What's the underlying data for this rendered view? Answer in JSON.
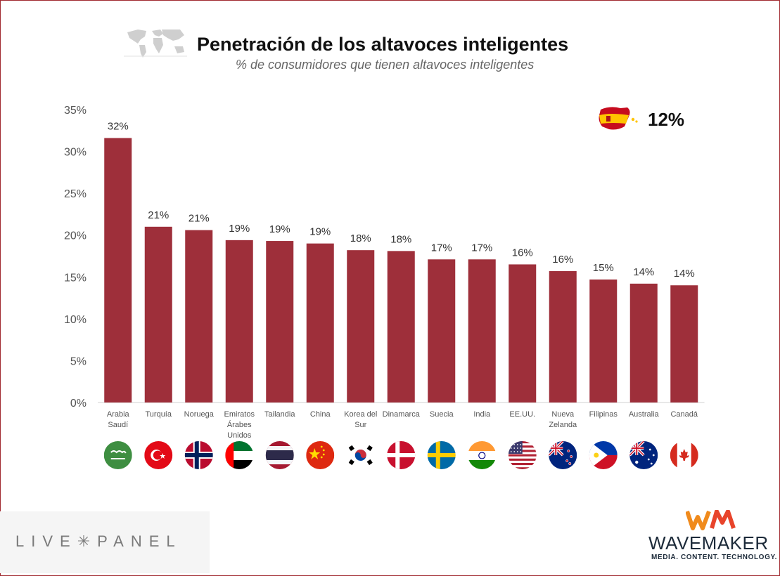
{
  "header": {
    "title": "Penetración de los altavoces inteligentes",
    "subtitle": "% de consumidores que tienen altavoces inteligentes"
  },
  "spain_callout": {
    "value": "12%",
    "flag": "spain-flag-icon"
  },
  "colors": {
    "bar": "#9e2f3a",
    "frame": "#a0292f"
  },
  "chart_data": {
    "type": "bar",
    "title": "Penetración de los altavoces inteligentes",
    "subtitle": "% de consumidores que tienen altavoces inteligentes",
    "categories": [
      "Arabia Saudí",
      "Turquía",
      "Noruega",
      "Emiratos Árabes Unidos",
      "Tailandia",
      "China",
      "Korea del Sur",
      "Dinamarca",
      "Suecia",
      "India",
      "EE.UU.",
      "Nueva Zelanda",
      "Filipinas",
      "Australia",
      "Canadá"
    ],
    "category_lines": [
      [
        "Arabia",
        "Saudí"
      ],
      [
        "Turquía"
      ],
      [
        "Noruega"
      ],
      [
        "Emiratos",
        "Árabes",
        "Unidos"
      ],
      [
        "Tailandia"
      ],
      [
        "China"
      ],
      [
        "Korea del",
        "Sur"
      ],
      [
        "Dinamarca"
      ],
      [
        "Suecia"
      ],
      [
        "India"
      ],
      [
        "EE.UU."
      ],
      [
        "Nueva",
        "Zelanda"
      ],
      [
        "Filipinas"
      ],
      [
        "Australia"
      ],
      [
        "Canadá"
      ]
    ],
    "values": [
      31.6,
      21.0,
      20.6,
      19.4,
      19.3,
      19.0,
      18.2,
      18.1,
      17.1,
      17.1,
      16.5,
      15.7,
      14.7,
      14.2,
      14.0
    ],
    "data_labels": [
      "32%",
      "21%",
      "21%",
      "19%",
      "19%",
      "19%",
      "18%",
      "18%",
      "17%",
      "17%",
      "16%",
      "16%",
      "15%",
      "14%",
      "14%"
    ],
    "flags": [
      "saudi-arabia-flag-icon",
      "turkey-flag-icon",
      "norway-flag-icon",
      "uae-flag-icon",
      "thailand-flag-icon",
      "china-flag-icon",
      "south-korea-flag-icon",
      "denmark-flag-icon",
      "sweden-flag-icon",
      "india-flag-icon",
      "usa-flag-icon",
      "new-zealand-flag-icon",
      "philippines-flag-icon",
      "australia-flag-icon",
      "canada-flag-icon"
    ],
    "ylim": [
      0,
      35
    ],
    "yticks": [
      "0%",
      "5%",
      "10%",
      "15%",
      "20%",
      "25%",
      "30%",
      "35%"
    ],
    "grid": false,
    "xlabel": "",
    "ylabel": ""
  },
  "logos": {
    "livepanel": "LIVE✳PANEL",
    "wavemaker": "WAVEMAKER",
    "wavemaker_tag": "MEDIA. CONTENT. TECHNOLOGY."
  }
}
